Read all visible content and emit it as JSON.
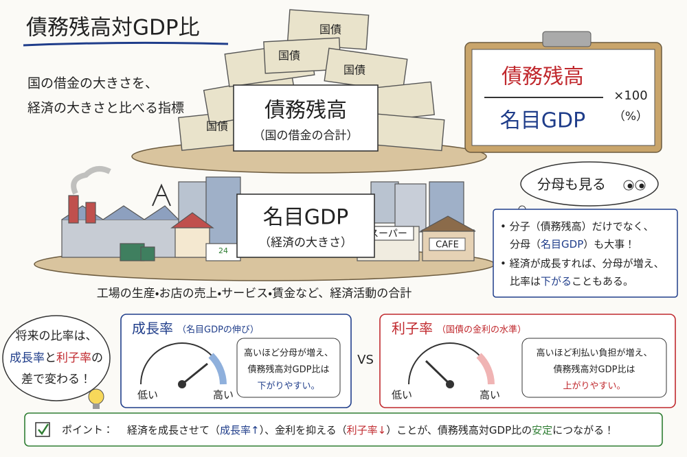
{
  "header": {
    "title": "債務残高対GDP比"
  },
  "intro": {
    "lines": [
      "国の借金の大きさを、",
      "経済の大きさと比べる指標"
    ]
  },
  "debt_pile": {
    "bill_label": "国債",
    "card_title": "債務残高",
    "card_subtitle": "（国の借金の合計）"
  },
  "formula": {
    "numerator": "債務残高",
    "denominator": "名目GDP",
    "multiplier": "×100",
    "unit": "（%）"
  },
  "thought_bubble": "分母も見る",
  "economy": {
    "card_title": "名目GDP",
    "card_subtitle": "（経済の大きさ）",
    "signs": [
      "24",
      "スーパー",
      "CAFE"
    ],
    "caption": "工場の生産・お店の売上・サービス・賃金など、経済活動の合計"
  },
  "notes": {
    "lines": [
      [
        "• 分子（債務残高）だけでなく、"
      ],
      [
        "分母（",
        "名目GDP",
        "）も大事！"
      ],
      [
        "• 経済が成長すれば、分母が増え、"
      ],
      [
        "比率は",
        "下がる",
        "こともある。"
      ]
    ]
  },
  "summary_bubble": {
    "lines": [
      [
        "将来の比率は、"
      ],
      [
        "成長率",
        "と",
        "利子率",
        "の"
      ],
      [
        "差で変わる！"
      ]
    ]
  },
  "growth": {
    "title": "成長率",
    "subtitle": "（名目GDPの伸び）",
    "low": "低い",
    "high": "高い",
    "lines": [
      "高いほど分母が増え、",
      "債務残高対GDP比は",
      "下がりやすい。"
    ]
  },
  "vs": "VS",
  "interest": {
    "title": "利子率",
    "subtitle": "（国債の金利の水準）",
    "low": "低い",
    "high": "高い",
    "lines": [
      "高いほど利払い負担が増え、",
      "債務残高対GDP比は",
      "上がりやすい。"
    ]
  },
  "point": {
    "label": "ポイント：",
    "segments": [
      "経済を成長させて（",
      "成長率↑",
      "）、金利を抑える（",
      "利子率↓",
      "）ことが、債務残高対GDP比の",
      "安定",
      "につながる！"
    ]
  }
}
